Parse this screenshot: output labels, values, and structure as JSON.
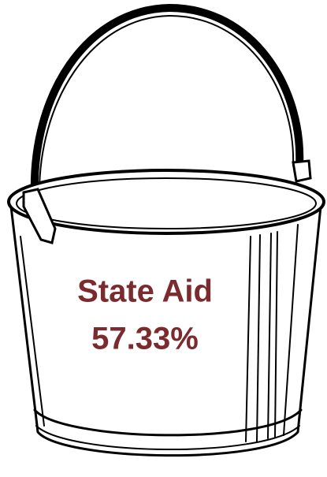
{
  "label": "State Aid",
  "value": "57.33%"
}
